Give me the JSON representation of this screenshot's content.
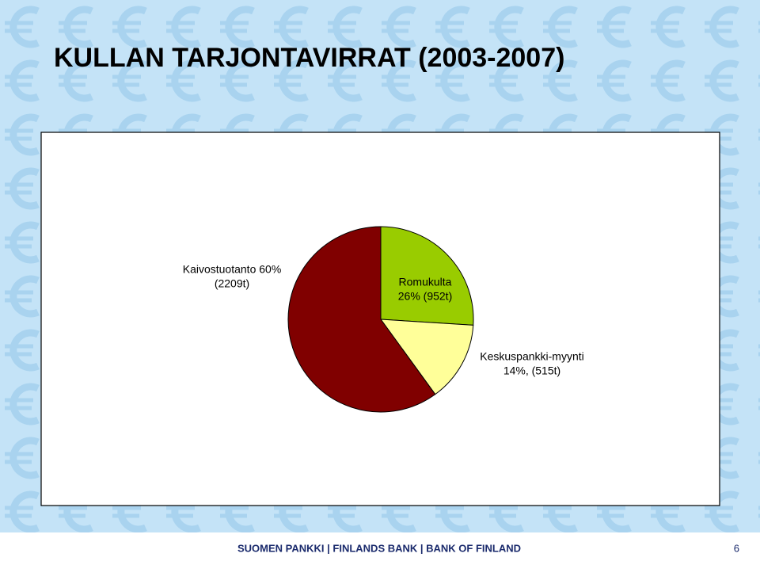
{
  "slide_title": "KULLAN TARJONTAVIRRAT (2003-2007)",
  "chart_data": {
    "type": "pie",
    "categories": [
      "Romukulta",
      "Keskuspankki-myynti",
      "Kaivostuotanto"
    ],
    "values": [
      26,
      14,
      60
    ],
    "value_labels": [
      [
        "Romukulta",
        "26% (952t)"
      ],
      [
        "Keskuspankki-myynti",
        "14%, (515t)"
      ],
      [
        "Kaivostuotanto  60%",
        "(2209t)"
      ]
    ],
    "colors": [
      "#99cc00",
      "#ffff99",
      "#800000"
    ]
  },
  "footer": {
    "text": "SUOMEN PANKKI | FINLANDS BANK | BANK OF FINLAND",
    "page": "6"
  }
}
